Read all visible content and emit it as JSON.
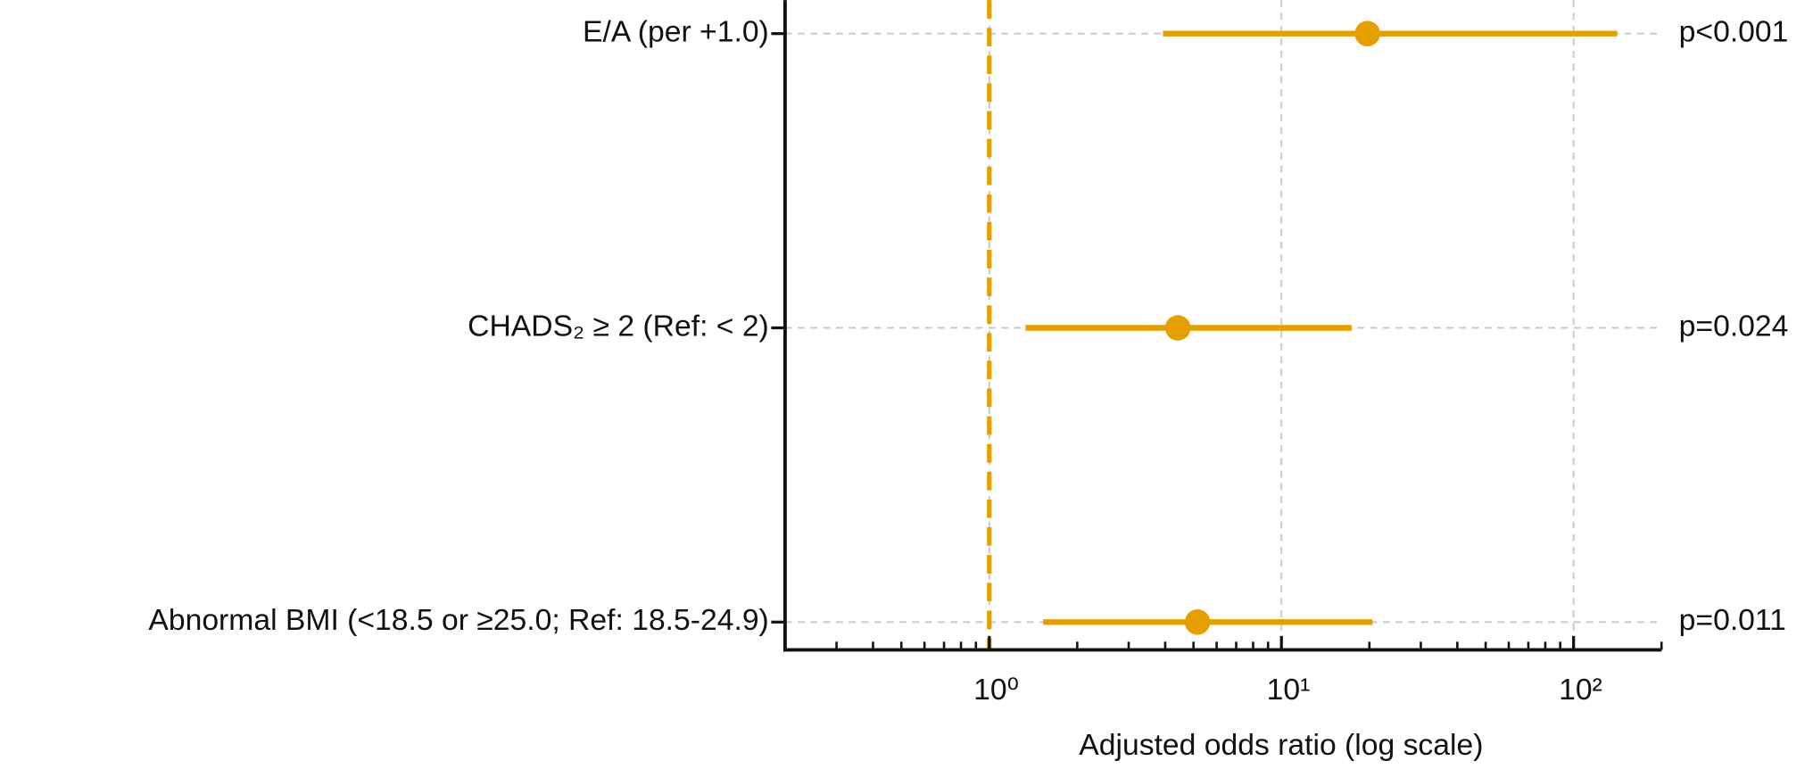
{
  "chart_data": {
    "type": "forest",
    "x_label": "Adjusted odds ratio (log scale)",
    "categories": [
      "E/A (per +1.0)",
      "CHADS₂ ≥ 2 (Ref: < 2)",
      "Abnormal BMI (<18.5 or ≥25.0; Ref: 18.5-24.9)"
    ],
    "values": [
      19.7,
      4.42,
      5.16
    ],
    "ci_lower": [
      3.93,
      1.33,
      1.53
    ],
    "ci_upper": [
      141,
      17.4,
      20.5
    ],
    "p_labels": [
      "p<0.001",
      "p=0.024",
      "p=0.011"
    ],
    "color": "#E69F00",
    "reference_line": 1,
    "xscale": "log",
    "xlim": [
      0.2,
      200
    ],
    "xticks": [
      {
        "value": 1,
        "label": "10⁰"
      },
      {
        "value": 10,
        "label": "10¹"
      },
      {
        "value": 100,
        "label": "10²"
      }
    ],
    "xminorticks": [
      0.2,
      0.3,
      0.4,
      0.5,
      0.6,
      0.7,
      0.8,
      0.9,
      2,
      3,
      4,
      5,
      6,
      7,
      8,
      9,
      20,
      30,
      40,
      50,
      60,
      70,
      80,
      90,
      200
    ],
    "grid": true
  }
}
